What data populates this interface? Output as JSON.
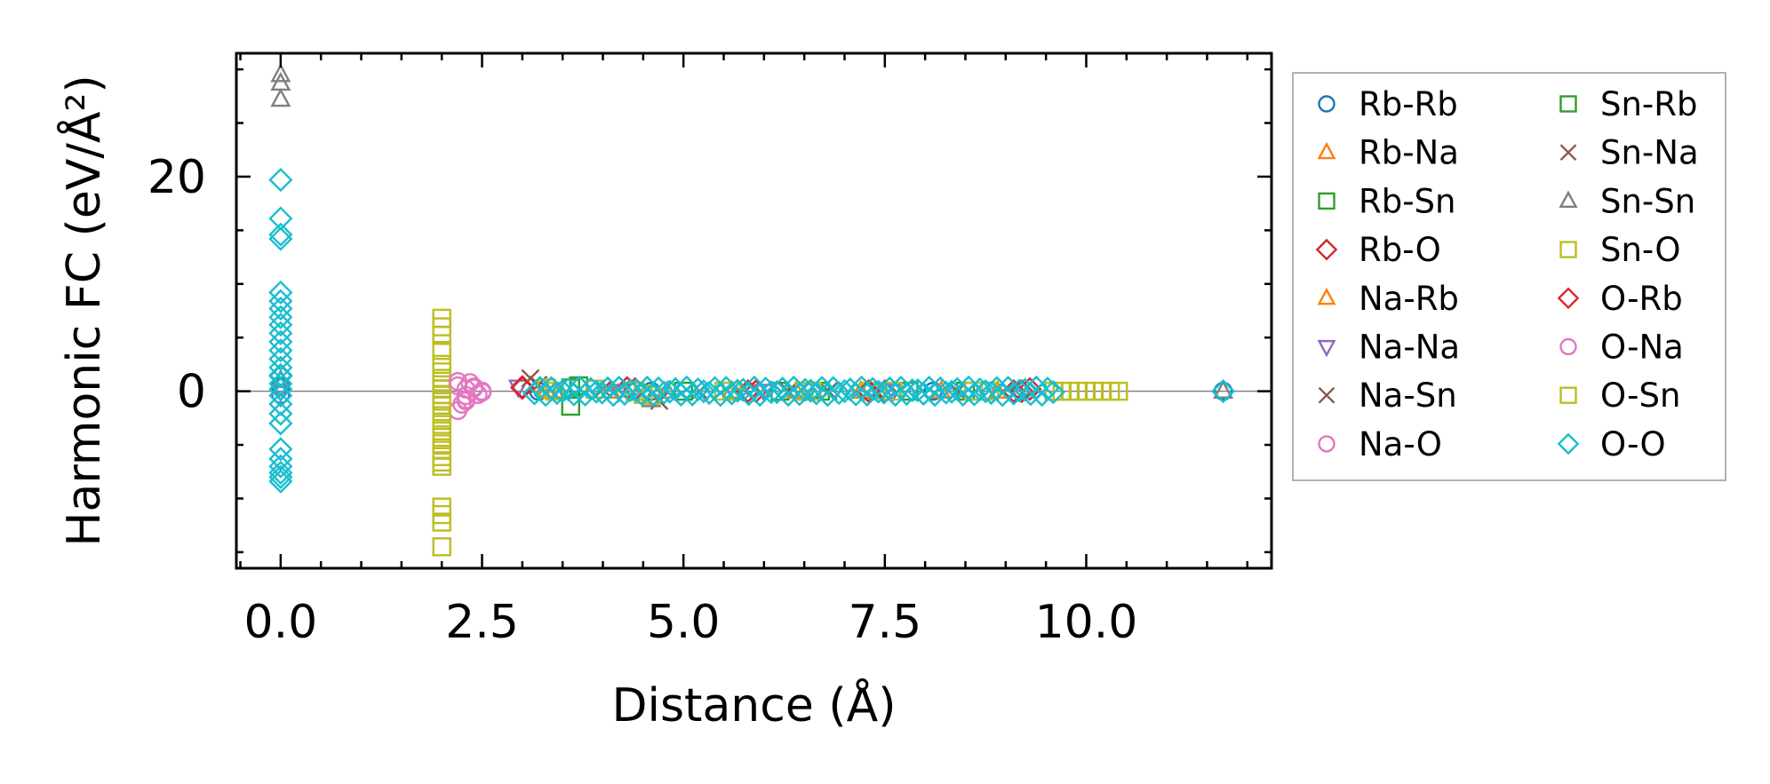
{
  "chart_data": {
    "type": "scatter",
    "xlabel": "Distance (Å)",
    "ylabel": "Harmonic FC (eV/Å²)",
    "xlim": [
      -0.55,
      12.3
    ],
    "ylim": [
      -16.5,
      31.5
    ],
    "xticks": [
      0.0,
      2.5,
      5.0,
      7.5,
      10.0
    ],
    "xtick_labels": [
      "0.0",
      "2.5",
      "5.0",
      "7.5",
      "10.0"
    ],
    "yticks": [
      0,
      20
    ],
    "ytick_labels": [
      "0",
      "20"
    ],
    "x_minor_step": 0.5,
    "y_minor_step": 5,
    "zero_line": true,
    "legend_position": "outside-right",
    "series": [
      {
        "name": "Rb-Rb",
        "marker": "circle",
        "color": "#1f77b4",
        "x": [
          0,
          0,
          11.7,
          3.2,
          4.6,
          6.6,
          8.1
        ],
        "y": [
          0.4,
          -0.3,
          0,
          0,
          0,
          0,
          0
        ]
      },
      {
        "name": "Rb-Na",
        "marker": "triangle-up",
        "color": "#ff7f0e",
        "x": [
          3.3,
          4.1,
          5.6,
          7.2,
          8.9
        ],
        "y": [
          0,
          0,
          0,
          0,
          0
        ]
      },
      {
        "name": "Rb-Sn",
        "marker": "square",
        "color": "#2ca02c",
        "x": [
          3.7,
          3.6,
          4.4,
          6.2,
          7.8
        ],
        "y": [
          0.5,
          -1.4,
          0,
          0,
          0
        ]
      },
      {
        "name": "Rb-O",
        "marker": "diamond",
        "color": "#d62728",
        "x": [
          3.0,
          4.3,
          5.9,
          7.5,
          9.1,
          9.3
        ],
        "y": [
          0.4,
          0.3,
          0,
          0,
          0,
          0.2
        ]
      },
      {
        "name": "Na-Rb",
        "marker": "triangle-up",
        "color": "#ff7f0e",
        "x": [
          3.4,
          4.8,
          6.4,
          8.2
        ],
        "y": [
          0,
          0,
          0,
          0
        ]
      },
      {
        "name": "Na-Na",
        "marker": "triangle-down",
        "color": "#9467bd",
        "x": [
          0,
          2.95,
          4.2,
          6.0,
          7.6
        ],
        "y": [
          0,
          0.4,
          0,
          0,
          0
        ]
      },
      {
        "name": "Na-Sn",
        "marker": "x",
        "color": "#8c564b",
        "x": [
          3.1,
          4.0,
          5.2,
          6.8,
          8.4
        ],
        "y": [
          1.2,
          0.2,
          0,
          0,
          0
        ]
      },
      {
        "name": "Na-O",
        "marker": "circle",
        "color": "#e377c2",
        "x": [
          2.2,
          2.3,
          2.4,
          2.5,
          2.25,
          2.35,
          2.45,
          2.2,
          2.3
        ],
        "y": [
          0.5,
          0.2,
          0.3,
          0,
          -1.2,
          0.8,
          -0.3,
          -1.8,
          -0.8
        ]
      },
      {
        "name": "Sn-Rb",
        "marker": "square",
        "color": "#2ca02c",
        "x": [
          3.6,
          5.0,
          6.7,
          8.5
        ],
        "y": [
          0.3,
          0,
          0,
          0
        ]
      },
      {
        "name": "Sn-Na",
        "marker": "x",
        "color": "#8c564b",
        "x": [
          3.2,
          4.7,
          6.3,
          7.4
        ],
        "y": [
          0.6,
          -0.9,
          0,
          0
        ]
      },
      {
        "name": "Sn-Sn",
        "marker": "triangle-up",
        "color": "#7f7f7f",
        "x": [
          0,
          0,
          0,
          0,
          4.6,
          11.7
        ],
        "y": [
          29.5,
          28.7,
          27.2,
          1.0,
          -0.8,
          0
        ]
      },
      {
        "name": "Sn-O",
        "marker": "square",
        "color": "#bcbd22",
        "x": [
          2,
          2,
          2,
          2,
          2,
          2,
          2,
          2,
          2,
          2,
          2,
          2,
          2,
          2,
          2,
          2,
          2,
          2,
          2,
          2,
          2,
          2,
          2,
          2,
          2,
          2,
          3.3,
          3.9,
          4.5,
          5.5,
          6.5,
          7.3,
          8.6,
          9.6
        ],
        "y": [
          6.8,
          6.0,
          5.2,
          3.8,
          2.5,
          1.8,
          1.2,
          0.6,
          0.2,
          -0.3,
          -0.7,
          -1.3,
          -1.9,
          -2.5,
          -3.1,
          -3.7,
          -4.3,
          -4.9,
          -5.5,
          -6.1,
          -6.6,
          -7.0,
          -10.8,
          -11.5,
          -12.2,
          -14.5,
          0.3,
          0.2,
          -0.3,
          0,
          0,
          0,
          0,
          0
        ]
      },
      {
        "name": "O-Rb",
        "marker": "diamond",
        "color": "#d62728",
        "x": [
          3.0,
          4.4,
          5.8,
          7.3,
          9.2
        ],
        "y": [
          0.3,
          0.2,
          0,
          0,
          0
        ]
      },
      {
        "name": "O-Na",
        "marker": "circle",
        "color": "#e377c2",
        "x": [
          2.2,
          2.3,
          2.4,
          2.5,
          2.3
        ],
        "y": [
          0.9,
          -0.4,
          0.4,
          -0.1,
          -0.9
        ]
      },
      {
        "name": "O-Sn",
        "marker": "square",
        "color": "#bcbd22",
        "x": [
          3.4,
          4.4,
          4.6,
          5.6,
          6.6,
          7.6,
          8.8,
          9.7,
          9.8,
          9.9,
          10.0,
          10.1,
          10.2,
          10.3,
          10.4
        ],
        "y": [
          0,
          0,
          -0.4,
          0,
          0,
          0,
          0,
          0,
          0,
          0,
          0,
          0,
          0,
          0,
          0
        ]
      },
      {
        "name": "O-O",
        "marker": "diamond",
        "color": "#17becf",
        "x": [
          0,
          0,
          0,
          0,
          0,
          0,
          0,
          0,
          0,
          0,
          0,
          0,
          0,
          0,
          0,
          0,
          0,
          0,
          0,
          0,
          0,
          0,
          0,
          0,
          0,
          0,
          0,
          0,
          11.7
        ],
        "y": [
          19.7,
          16.1,
          14.6,
          14.2,
          9.2,
          8.4,
          7.7,
          6.9,
          6.2,
          5.4,
          4.6,
          3.8,
          3.0,
          2.2,
          1.4,
          0.7,
          0.2,
          -0.4,
          -1.2,
          -2.1,
          -3.0,
          -5.4,
          -6.3,
          -7.0,
          -7.6,
          -8.0,
          -8.4,
          1.5,
          0
        ],
        "band_x": [
          3.15,
          9.6
        ]
      }
    ]
  }
}
